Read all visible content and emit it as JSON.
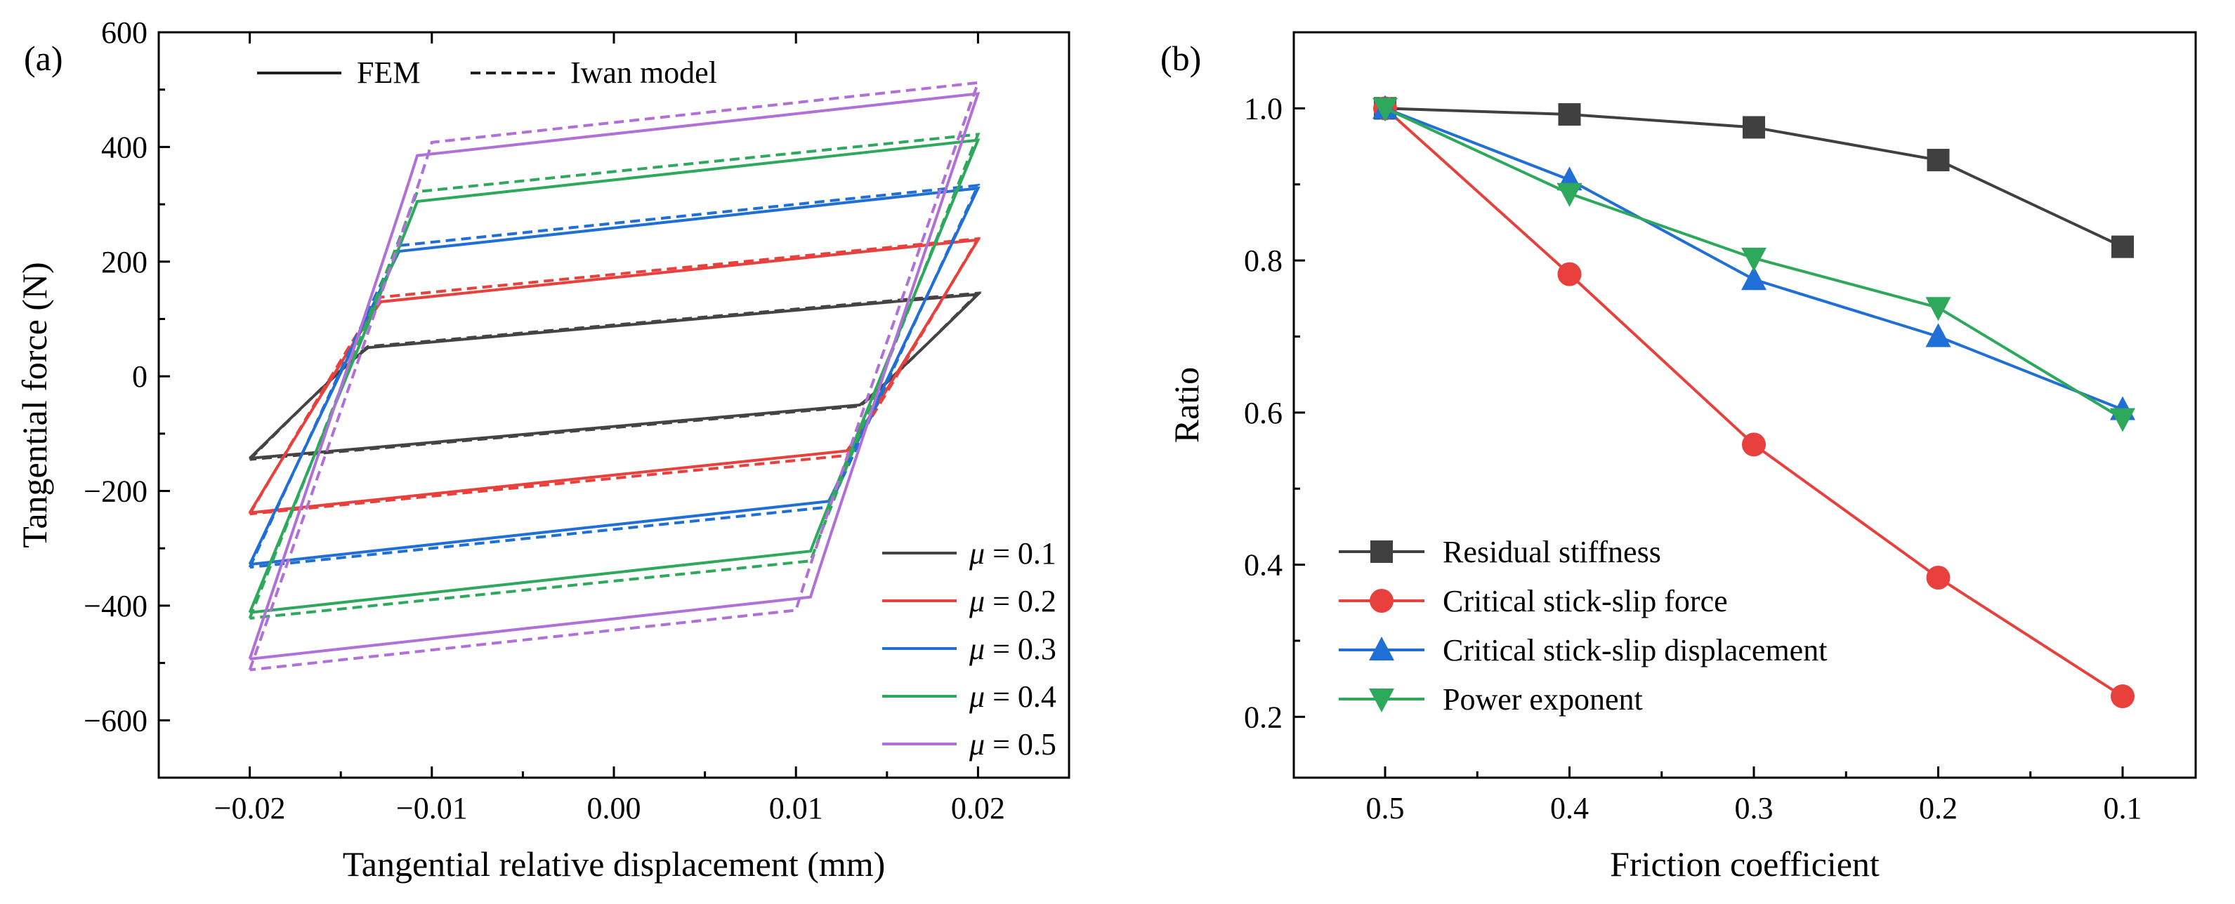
{
  "chart_data": [
    {
      "panel_label": "(a)",
      "type": "line",
      "xlabel": "Tangential relative displacement (mm)",
      "ylabel": "Tangential force (N)",
      "xlim": [
        -0.025,
        0.025
      ],
      "ylim": [
        -700,
        600
      ],
      "xticks": [
        -0.02,
        -0.01,
        0.0,
        0.01,
        0.02
      ],
      "xtick_labels": [
        "−0.02",
        "−0.01",
        "0.00",
        "0.01",
        "0.02"
      ],
      "yticks": [
        -600,
        -400,
        -200,
        0,
        200,
        400,
        600
      ],
      "ytick_labels": [
        "−600",
        "−400",
        "−200",
        "0",
        "200",
        "400",
        "600"
      ],
      "grid": false,
      "style_legend": {
        "placement": "top-left",
        "entries": [
          {
            "label": "FEM",
            "dash": "solid"
          },
          {
            "label": "Iwan model",
            "dash": "dashed"
          }
        ]
      },
      "series_legend": {
        "placement": "bottom-right",
        "symbol": "μ",
        "sep": " = "
      },
      "series": [
        {
          "mu": "0.1",
          "color": "#444444",
          "fem": {
            "xs": -0.0135,
            "Fs": 50,
            "Fmax": 143
          },
          "iwan": {
            "xs": -0.0135,
            "Fs": 52,
            "Fmax": 145
          }
        },
        {
          "mu": "0.2",
          "color": "#e8403c",
          "fem": {
            "xs": -0.0128,
            "Fs": 130,
            "Fmax": 238
          },
          "iwan": {
            "xs": -0.0128,
            "Fs": 138,
            "Fmax": 240
          }
        },
        {
          "mu": "0.3",
          "color": "#1f6fd6",
          "fem": {
            "xs": -0.0118,
            "Fs": 218,
            "Fmax": 328
          },
          "iwan": {
            "xs": -0.0118,
            "Fs": 228,
            "Fmax": 333
          }
        },
        {
          "mu": "0.4",
          "color": "#2ea85b",
          "fem": {
            "xs": -0.0108,
            "Fs": 305,
            "Fmax": 412
          },
          "iwan": {
            "xs": -0.0108,
            "Fs": 322,
            "Fmax": 422
          }
        },
        {
          "mu": "0.5",
          "color": "#b070d8",
          "fem": {
            "xs": -0.0108,
            "Fs": 385,
            "Fmax": 493
          },
          "iwan": {
            "xs": -0.01,
            "Fs": 408,
            "Fmax": 512
          }
        }
      ]
    },
    {
      "panel_label": "(b)",
      "type": "line",
      "xlabel": "Friction coefficient",
      "ylabel": "Ratio",
      "categories": [
        "0.5",
        "0.4",
        "0.3",
        "0.2",
        "0.1"
      ],
      "ylim": [
        0.12,
        1.1
      ],
      "yticks": [
        0.2,
        0.4,
        0.6,
        0.8,
        1.0
      ],
      "ytick_labels": [
        "0.2",
        "0.4",
        "0.6",
        "0.8",
        "1.0"
      ],
      "grid": false,
      "legend": {
        "placement": "bottom-left"
      },
      "series": [
        {
          "name": "Residual stiffness",
          "color": "#404040",
          "marker": "square",
          "values": [
            1.0,
            0.992,
            0.975,
            0.932,
            0.818
          ]
        },
        {
          "name": "Critical stick-slip force",
          "color": "#e8403c",
          "marker": "circle",
          "values": [
            1.0,
            0.782,
            0.558,
            0.383,
            0.227
          ]
        },
        {
          "name": "Critical stick-slip displacement",
          "color": "#1f6fd6",
          "marker": "triangle-up",
          "values": [
            1.0,
            0.906,
            0.775,
            0.7,
            0.604
          ]
        },
        {
          "name": "Power exponent",
          "color": "#2ea85b",
          "marker": "triangle-down",
          "values": [
            1.0,
            0.888,
            0.803,
            0.738,
            0.592
          ]
        }
      ]
    }
  ]
}
